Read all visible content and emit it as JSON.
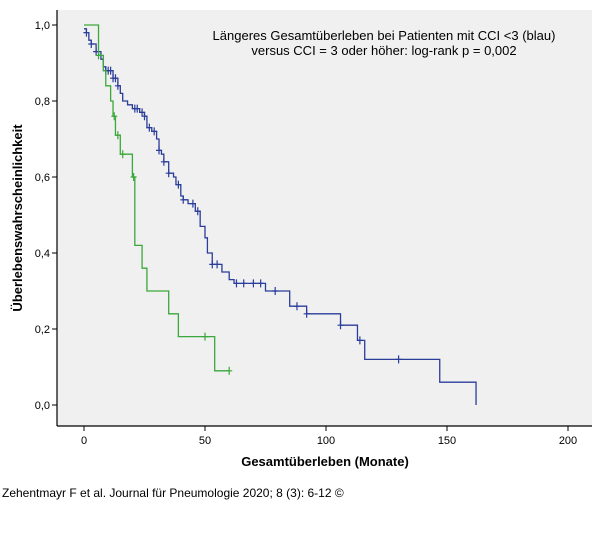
{
  "chart_data": {
    "type": "line",
    "subtype": "kaplan-meier step",
    "annotation": [
      "Längeres Gesamtüberleben bei Patienten mit CCI <3 (blau)",
      "versus CCI = 3 oder höher: log-rank p = 0,002"
    ],
    "xlabel": "Gesamtüberleben (Monate)",
    "ylabel": "Überlebenswahrscheinlichkeit",
    "xlim": [
      -10,
      210
    ],
    "ylim": [
      -0.06,
      1.04
    ],
    "xticks": [
      0,
      50,
      100,
      150,
      200
    ],
    "xtick_labels": [
      "0",
      "50",
      "100",
      "150",
      "200"
    ],
    "yticks": [
      0.0,
      0.2,
      0.4,
      0.6,
      0.8,
      1.0
    ],
    "ytick_labels": [
      "0,0",
      "0,2",
      "0,4",
      "0,6",
      "0,8",
      "1,0"
    ],
    "grid": false,
    "background": "#f0f0f0",
    "series": [
      {
        "color": "#2b3d9a",
        "steps": [
          [
            0,
            0.99
          ],
          [
            1,
            0.98
          ],
          [
            2,
            0.96
          ],
          [
            3,
            0.95
          ],
          [
            5,
            0.93
          ],
          [
            7,
            0.91
          ],
          [
            8,
            0.89
          ],
          [
            9,
            0.88
          ],
          [
            12,
            0.86
          ],
          [
            14,
            0.84
          ],
          [
            15,
            0.82
          ],
          [
            16,
            0.8
          ],
          [
            18,
            0.79
          ],
          [
            20,
            0.78
          ],
          [
            23,
            0.77
          ],
          [
            25,
            0.76
          ],
          [
            26,
            0.73
          ],
          [
            28,
            0.72
          ],
          [
            30,
            0.7
          ],
          [
            31,
            0.67
          ],
          [
            32,
            0.66
          ],
          [
            33,
            0.64
          ],
          [
            35,
            0.61
          ],
          [
            37,
            0.6
          ],
          [
            38,
            0.58
          ],
          [
            40,
            0.55
          ],
          [
            41,
            0.54
          ],
          [
            43,
            0.53
          ],
          [
            46,
            0.51
          ],
          [
            48,
            0.47
          ],
          [
            50,
            0.44
          ],
          [
            51,
            0.4
          ],
          [
            53,
            0.37
          ],
          [
            57,
            0.35
          ],
          [
            60,
            0.33
          ],
          [
            62,
            0.32
          ],
          [
            75,
            0.3
          ],
          [
            85,
            0.26
          ],
          [
            92,
            0.24
          ],
          [
            106,
            0.21
          ],
          [
            113,
            0.17
          ],
          [
            116,
            0.12
          ],
          [
            147,
            0.06
          ],
          [
            162,
            0.0
          ]
        ],
        "censored": [
          1,
          3,
          5,
          9,
          10,
          11,
          12,
          13,
          14,
          21,
          22,
          24,
          25,
          27,
          29,
          31,
          33,
          35,
          39,
          41,
          45,
          47,
          53,
          55,
          63,
          66,
          70,
          73,
          79,
          88,
          92,
          106,
          114,
          130
        ]
      },
      {
        "color": "#3aa83a",
        "steps": [
          [
            0,
            1.0
          ],
          [
            6,
            0.92
          ],
          [
            8,
            0.88
          ],
          [
            9,
            0.84
          ],
          [
            11,
            0.8
          ],
          [
            12,
            0.76
          ],
          [
            13,
            0.71
          ],
          [
            15,
            0.66
          ],
          [
            20,
            0.6
          ],
          [
            21,
            0.42
          ],
          [
            24,
            0.36
          ],
          [
            26,
            0.3
          ],
          [
            35,
            0.24
          ],
          [
            39,
            0.18
          ],
          [
            54,
            0.09
          ],
          [
            60,
            0.09
          ]
        ],
        "censored": [
          6,
          12.5,
          14,
          16,
          20.5,
          50,
          60
        ]
      }
    ]
  },
  "citation": "Zehentmayr F et al. Journal für Pneumologie 2020; 8 (3): 6-12 ©"
}
